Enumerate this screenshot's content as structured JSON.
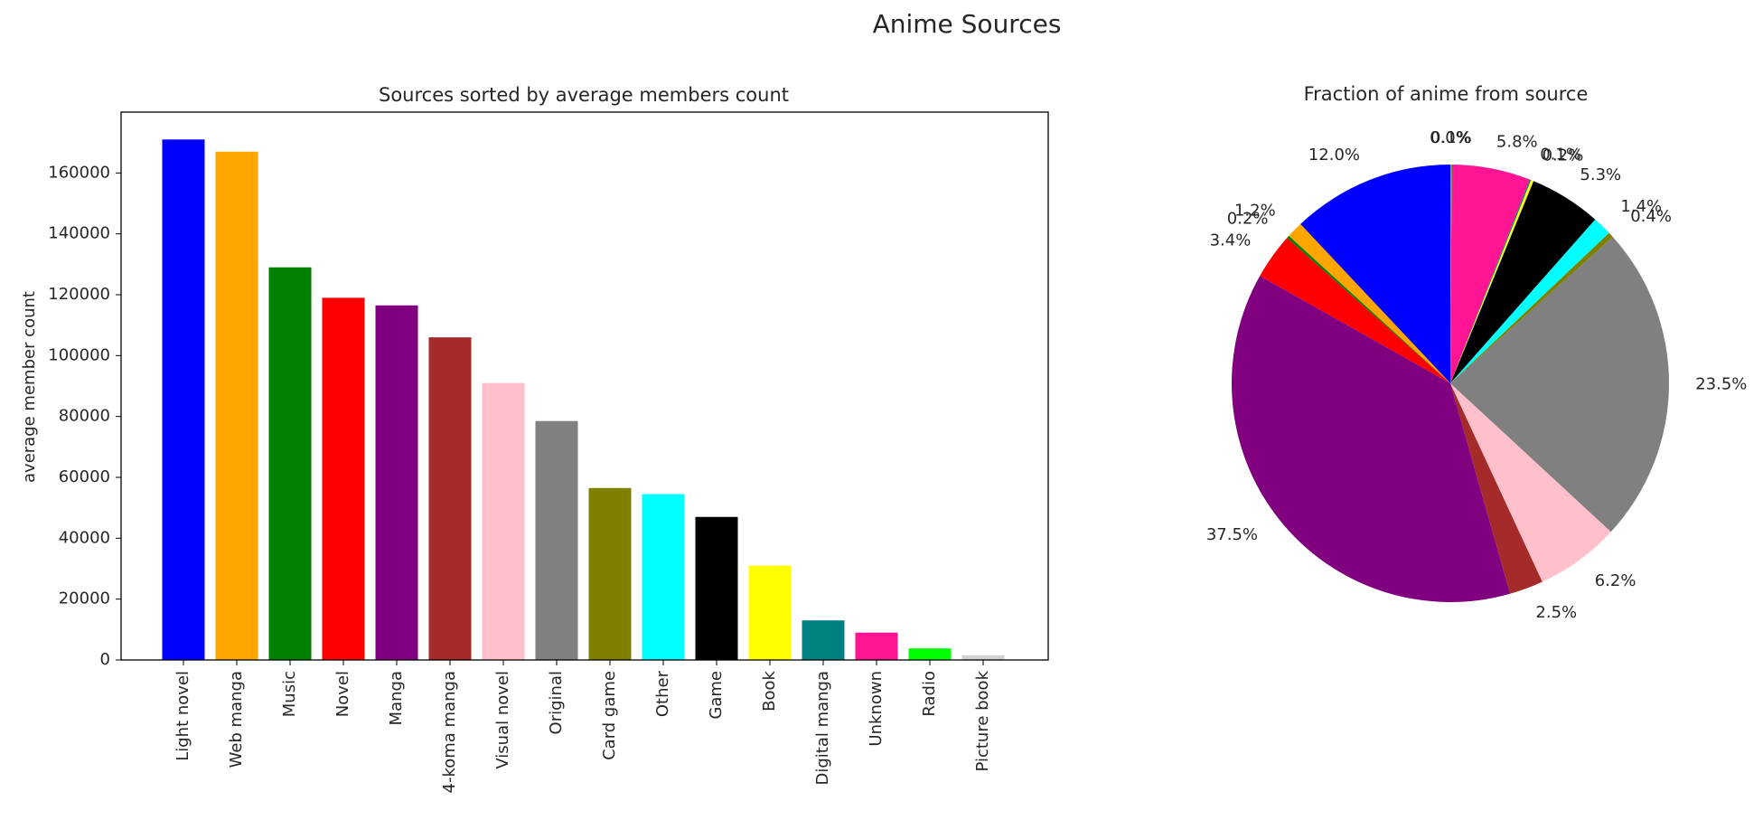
{
  "figure": {
    "title": "Anime Sources"
  },
  "chart_data": [
    {
      "type": "bar",
      "title": "Sources sorted by average members count",
      "xlabel": "",
      "ylabel": "average member count",
      "categories": [
        "Light novel",
        "Web manga",
        "Music",
        "Novel",
        "Manga",
        "4-koma manga",
        "Visual novel",
        "Original",
        "Card game",
        "Other",
        "Game",
        "Book",
        "Digital manga",
        "Unknown",
        "Radio",
        "Picture book"
      ],
      "values": [
        171000,
        167000,
        129000,
        119000,
        116500,
        106000,
        91000,
        78500,
        56500,
        54500,
        47000,
        31000,
        13000,
        9000,
        3800,
        1500
      ],
      "colors": [
        "#0000ff",
        "#ffa500",
        "#008000",
        "#ff0000",
        "#800080",
        "#a52a2a",
        "#ffc0cb",
        "#808080",
        "#808000",
        "#00ffff",
        "#000000",
        "#ffff00",
        "#008080",
        "#ff1493",
        "#00ff00",
        "#d3d3d3"
      ],
      "ylim": [
        0,
        180000
      ],
      "yticks": [
        0,
        20000,
        40000,
        60000,
        80000,
        100000,
        120000,
        140000,
        160000
      ],
      "ytick_labels": [
        "0",
        "20000",
        "40000",
        "60000",
        "80000",
        "100000",
        "120000",
        "140000",
        "160000"
      ],
      "grid": false
    },
    {
      "type": "pie",
      "title": "Fraction of anime from source",
      "start_angle_deg": 90,
      "direction": "counterclockwise",
      "slices": [
        {
          "pct": 12.0,
          "color": "#0000ff",
          "label": "12.0%"
        },
        {
          "pct": 1.2,
          "color": "#ffa500",
          "label": "1.2%"
        },
        {
          "pct": 0.2,
          "color": "#008000",
          "label": "0.2%"
        },
        {
          "pct": 3.4,
          "color": "#ff0000",
          "label": "3.4%"
        },
        {
          "pct": 37.5,
          "color": "#800080",
          "label": "37.5%"
        },
        {
          "pct": 2.5,
          "color": "#a52a2a",
          "label": "2.5%"
        },
        {
          "pct": 6.2,
          "color": "#ffc0cb",
          "label": "6.2%"
        },
        {
          "pct": 23.5,
          "color": "#808080",
          "label": "23.5%"
        },
        {
          "pct": 0.4,
          "color": "#808000",
          "label": "0.4%"
        },
        {
          "pct": 1.4,
          "color": "#00ffff",
          "label": "1.4%"
        },
        {
          "pct": 5.3,
          "color": "#000000",
          "label": "5.3%"
        },
        {
          "pct": 0.2,
          "color": "#ffff00",
          "label": "0.2%"
        },
        {
          "pct": 0.1,
          "color": "#008080",
          "label": "0.1%"
        },
        {
          "pct": 5.8,
          "color": "#ff1493",
          "label": "5.8%"
        },
        {
          "pct": 0.1,
          "color": "#00ff00",
          "label": "0.1%"
        },
        {
          "pct": 0.0,
          "color": "#d3d3d3",
          "label": "0.0%"
        }
      ]
    }
  ]
}
